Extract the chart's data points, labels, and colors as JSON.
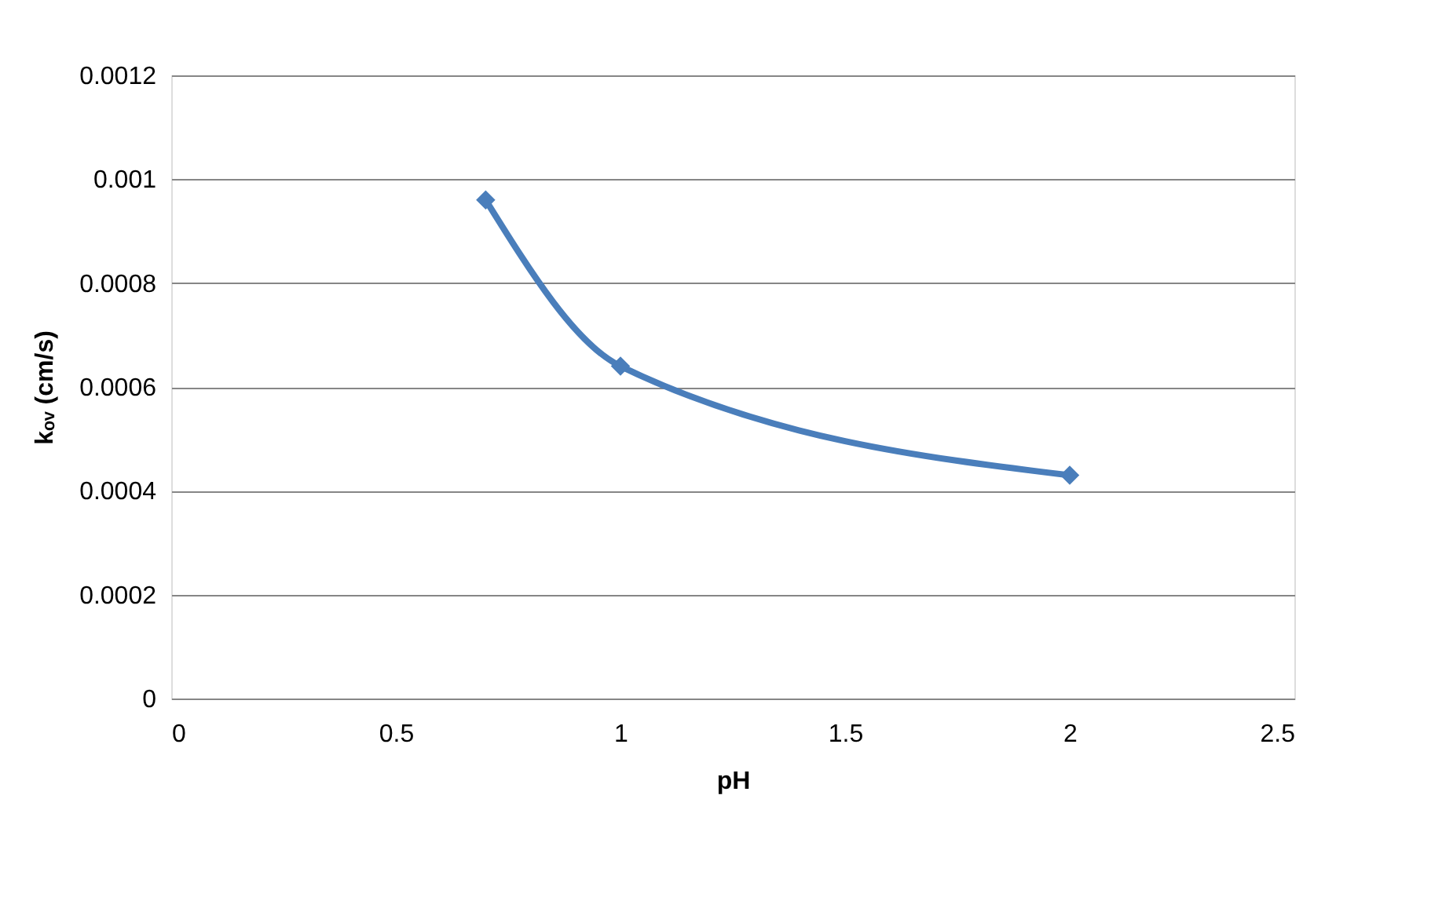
{
  "chart_data": {
    "type": "line",
    "xlabel": "pH",
    "ylabel": "kₒᵥ (cm/s)",
    "x": [
      0.7,
      1,
      2
    ],
    "series": [
      {
        "color": "#4a7ebb",
        "values": [
          0.00096,
          0.00064,
          0.00043
        ]
      }
    ],
    "xlim": [
      0,
      2.5
    ],
    "xticks": [
      0,
      0.5,
      1,
      1.5,
      2,
      2.5
    ],
    "ylim": [
      0,
      0.0012
    ],
    "yticks": [
      0,
      0.0002,
      0.0004,
      0.0006,
      0.0008,
      0.001,
      0.0012
    ],
    "grid": "y",
    "marker": "diamond",
    "line_style": "solid",
    "legend": false
  }
}
